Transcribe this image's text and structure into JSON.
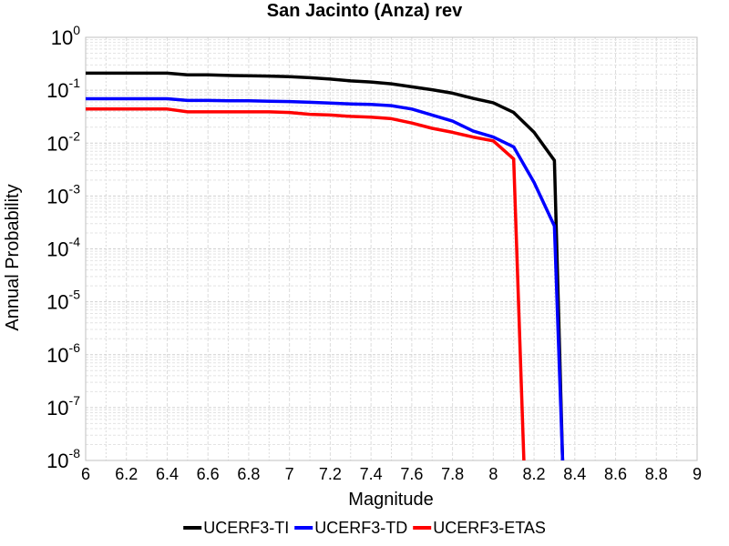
{
  "chart_data": {
    "type": "line",
    "title": "San Jacinto (Anza) rev",
    "xlabel": "Magnitude",
    "ylabel": "Annual Probability",
    "xlim": [
      6,
      9
    ],
    "ylim": [
      1e-08,
      1
    ],
    "yscale": "log",
    "grid": true,
    "legend_position": "bottom",
    "x_ticks": [
      "6",
      "6.2",
      "6.4",
      "6.6",
      "6.8",
      "7",
      "7.2",
      "7.4",
      "7.6",
      "7.8",
      "8",
      "8.2",
      "8.4",
      "8.6",
      "8.8",
      "9"
    ],
    "y_ticks": [
      {
        "base": "10",
        "exp": "0",
        "value": 1
      },
      {
        "base": "10",
        "exp": "-1",
        "value": 0.1
      },
      {
        "base": "10",
        "exp": "-2",
        "value": 0.01
      },
      {
        "base": "10",
        "exp": "-3",
        "value": 0.001
      },
      {
        "base": "10",
        "exp": "-4",
        "value": 0.0001
      },
      {
        "base": "10",
        "exp": "-5",
        "value": 1e-05
      },
      {
        "base": "10",
        "exp": "-6",
        "value": 1e-06
      },
      {
        "base": "10",
        "exp": "-7",
        "value": 1e-07
      },
      {
        "base": "10",
        "exp": "-8",
        "value": 1e-08
      }
    ],
    "series": [
      {
        "name": "UCERF3-TI",
        "color": "#000000",
        "x": [
          6.0,
          6.1,
          6.2,
          6.3,
          6.4,
          6.5,
          6.6,
          6.7,
          6.8,
          6.9,
          7.0,
          7.1,
          7.2,
          7.3,
          7.4,
          7.5,
          7.6,
          7.7,
          7.8,
          7.9,
          8.0,
          8.1,
          8.2,
          8.3,
          8.34
        ],
        "y": [
          0.21,
          0.21,
          0.21,
          0.21,
          0.21,
          0.195,
          0.195,
          0.19,
          0.188,
          0.185,
          0.18,
          0.172,
          0.162,
          0.15,
          0.143,
          0.132,
          0.116,
          0.102,
          0.088,
          0.07,
          0.058,
          0.038,
          0.016,
          0.0047,
          1e-08
        ]
      },
      {
        "name": "UCERF3-TD",
        "color": "#0000ff",
        "x": [
          6.0,
          6.1,
          6.2,
          6.3,
          6.4,
          6.5,
          6.6,
          6.7,
          6.8,
          6.9,
          7.0,
          7.1,
          7.2,
          7.3,
          7.4,
          7.5,
          7.6,
          7.7,
          7.8,
          7.9,
          8.0,
          8.1,
          8.2,
          8.3,
          8.34
        ],
        "y": [
          0.069,
          0.069,
          0.069,
          0.069,
          0.069,
          0.064,
          0.064,
          0.063,
          0.063,
          0.062,
          0.061,
          0.059,
          0.057,
          0.055,
          0.054,
          0.051,
          0.044,
          0.034,
          0.026,
          0.017,
          0.013,
          0.0085,
          0.0018,
          0.00027,
          1e-08
        ]
      },
      {
        "name": "UCERF3-ETAS",
        "color": "#ff0000",
        "x": [
          6.0,
          6.1,
          6.2,
          6.3,
          6.4,
          6.5,
          6.6,
          6.7,
          6.8,
          6.9,
          7.0,
          7.1,
          7.2,
          7.3,
          7.4,
          7.5,
          7.6,
          7.7,
          7.8,
          7.9,
          8.0,
          8.1,
          8.15
        ],
        "y": [
          0.044,
          0.044,
          0.044,
          0.044,
          0.044,
          0.039,
          0.039,
          0.039,
          0.039,
          0.039,
          0.038,
          0.035,
          0.034,
          0.032,
          0.031,
          0.029,
          0.024,
          0.019,
          0.016,
          0.013,
          0.011,
          0.005,
          1e-08
        ]
      }
    ]
  }
}
